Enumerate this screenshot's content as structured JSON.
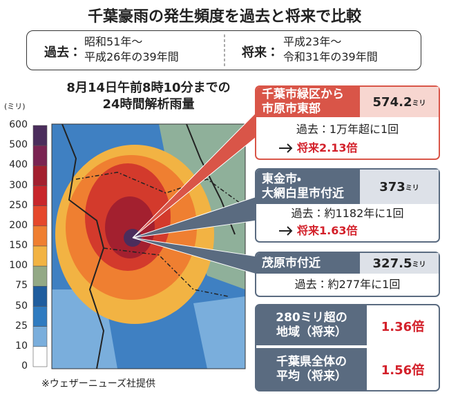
{
  "title": "千葉豪雨の発生頻度を過去と将来で比較",
  "periods": {
    "past": {
      "label": "過去：",
      "lines": [
        "昭和51年〜",
        "平成26年の39年間"
      ]
    },
    "future": {
      "label": "将来：",
      "lines": [
        "平成23年〜",
        "令和31年の39年間"
      ]
    }
  },
  "map": {
    "title": [
      "8月14日午前8時10分までの",
      "24時間解析雨量"
    ],
    "credit": "※ウェザーニューズ社提供"
  },
  "legend": {
    "unit": "(ミリ)",
    "ticks": [
      600,
      500,
      400,
      300,
      250,
      200,
      150,
      100,
      75,
      50,
      25,
      10,
      0
    ],
    "colors": [
      "#4b2d5c",
      "#7a2452",
      "#a3202f",
      "#c8262b",
      "#e5482c",
      "#ef7f31",
      "#f2b343",
      "#93a986",
      "#1f5d9e",
      "#2f7bc0",
      "#7aaedc",
      "#ffffff"
    ]
  },
  "callouts": [
    {
      "area": [
        "千葉市緑区から",
        "市原市東部"
      ],
      "value": "574.2",
      "unit": "ミリ",
      "past": "過去：1万年超に1回",
      "future": "将来2.13倍"
    },
    {
      "area": [
        "東金市・",
        "大網白里市付近"
      ],
      "value": "373",
      "unit": "ミリ",
      "past": "過去：約1182年に1回",
      "future": "将来1.63倍"
    },
    {
      "area": [
        "茂原市付近"
      ],
      "value": "327.5",
      "unit": "ミリ",
      "past": "過去：約277年に1回"
    }
  ],
  "summary": [
    {
      "label": [
        "280ミリ超の",
        "地域（将来）"
      ],
      "value": "1.36倍"
    },
    {
      "label": [
        "千葉県全体の",
        "平均（将来）"
      ],
      "value": "1.56倍"
    }
  ]
}
